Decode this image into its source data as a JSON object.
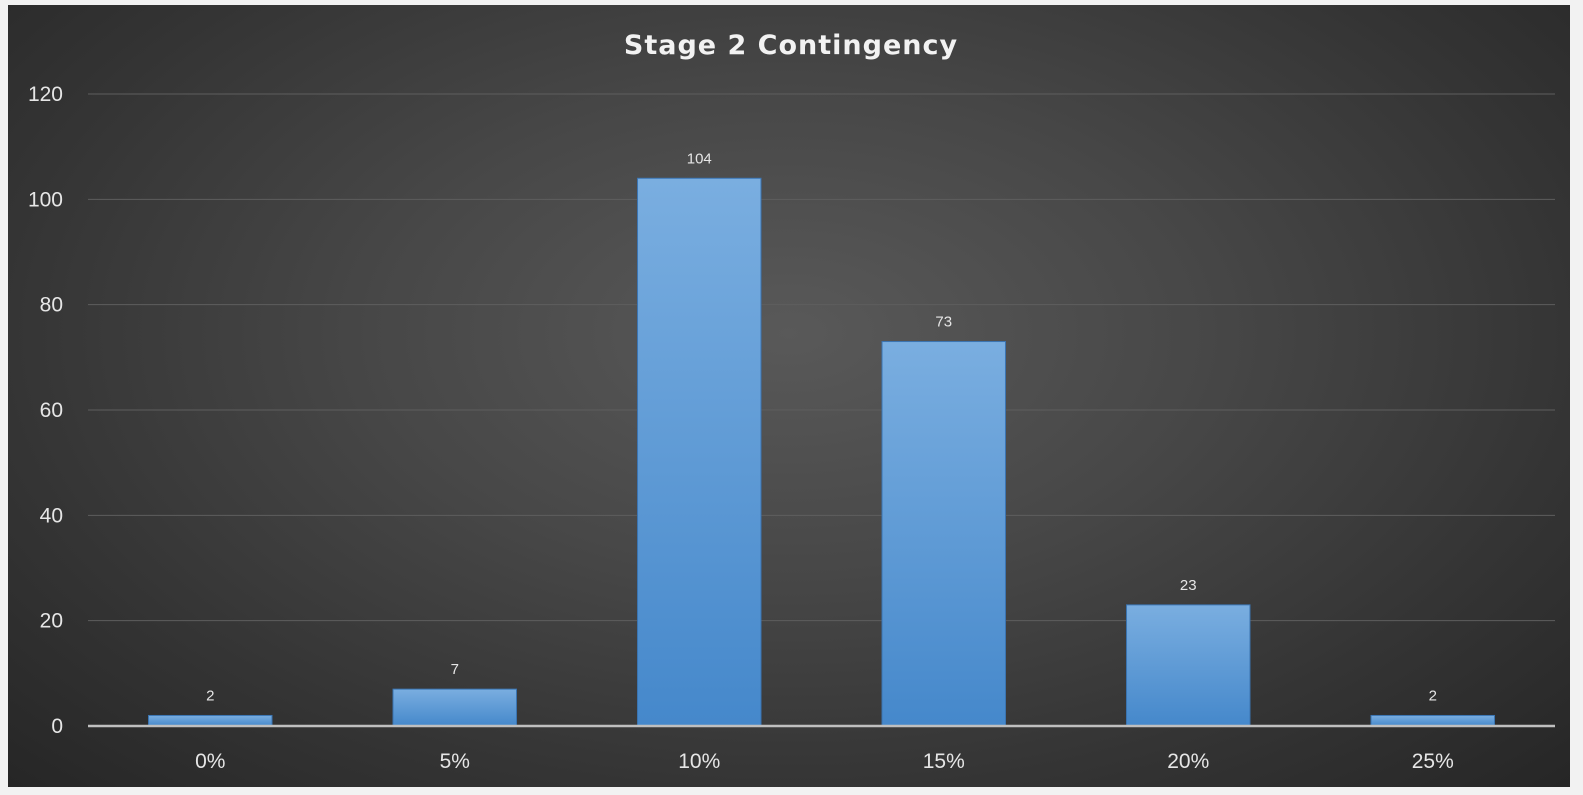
{
  "chart_data": {
    "type": "bar",
    "title": "Stage 2 Contingency",
    "xlabel": "",
    "ylabel": "",
    "categories": [
      "0%",
      "5%",
      "10%",
      "15%",
      "20%",
      "25%"
    ],
    "values": [
      2,
      7,
      104,
      73,
      23,
      2
    ],
    "ylim": [
      0,
      120
    ],
    "yticks": [
      0,
      20,
      40,
      60,
      80,
      100,
      120
    ],
    "grid": true,
    "legend": "none",
    "data_labels": true
  },
  "colors": {
    "bar_top": "#7aaee0",
    "bar_bottom": "#4588cb",
    "background": "#3a3a3a"
  }
}
